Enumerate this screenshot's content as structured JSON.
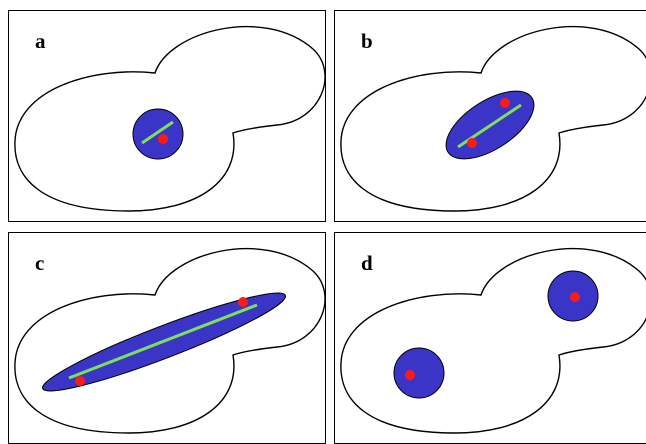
{
  "panels": [
    {
      "id": "a",
      "label": "a",
      "stage": "single-nucleus"
    },
    {
      "id": "b",
      "label": "b",
      "stage": "nucleus-elongating"
    },
    {
      "id": "c",
      "label": "c",
      "stage": "spindle-spanning-neck"
    },
    {
      "id": "d",
      "label": "d",
      "stage": "divided-nuclei"
    }
  ],
  "colors": {
    "cell_fill": "#ffffff",
    "cell_outline": "#000000",
    "nucleus_fill": "#3b35c7",
    "nucleus_outline": "#000000",
    "spindle": "#7ee05a",
    "spindle_pole_body": "#ff1a1a"
  }
}
